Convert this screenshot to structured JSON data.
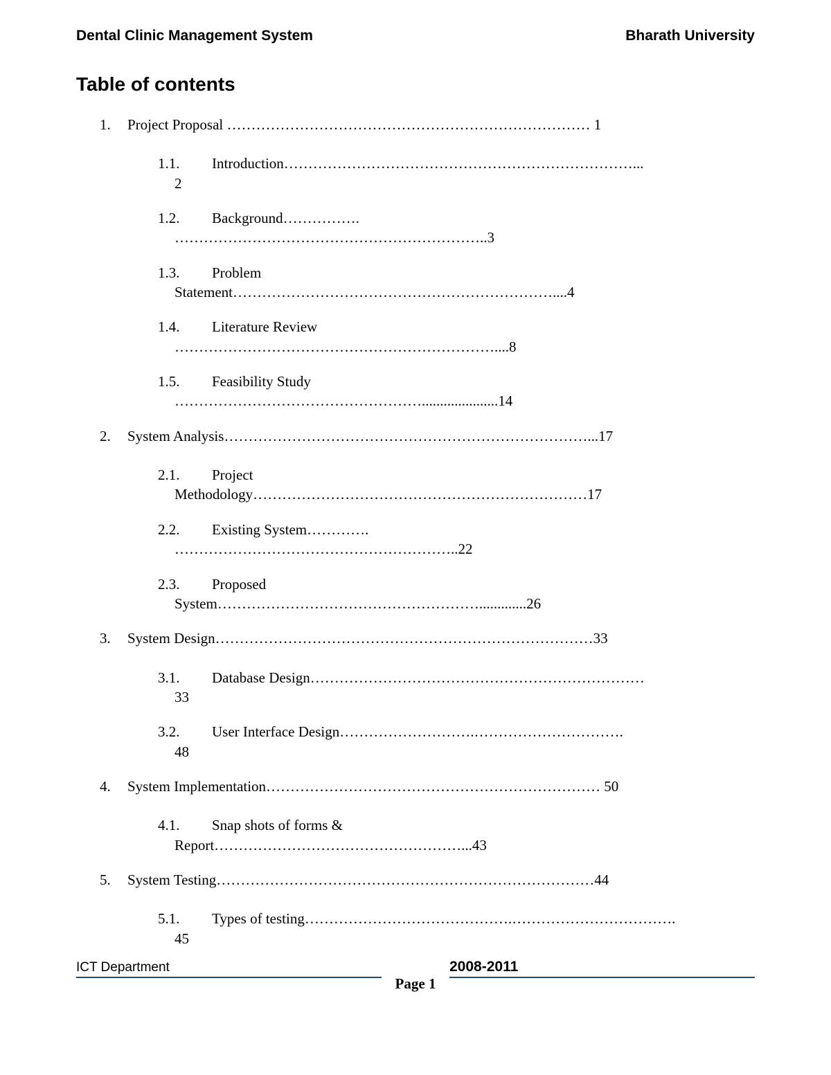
{
  "header": {
    "left": "Dental Clinic Management System",
    "right": "Bharath University"
  },
  "title": "Table of contents",
  "toc": [
    {
      "num": "1.",
      "line1": "Project Proposal ………………………………………………………………… 1",
      "subs": [
        {
          "num": "1.1.",
          "line1": "Introduction………………………………………………………………...",
          "line2": "2"
        },
        {
          "num": "1.2.",
          "line1": "Background…………….",
          "line2": "………………………………………………………..3"
        },
        {
          "num": "1.3.",
          "line1": "Problem",
          "cont": "Statement…………………………………………………………....4"
        },
        {
          "num": "1.4.",
          "line1": "Literature Review",
          "line2": "…………………………………………………………....8"
        },
        {
          "num": "1.5.",
          "line1": " Feasibility Study",
          "line2": "…………………………………………….....................14"
        }
      ]
    },
    {
      "num": "2.",
      "line1": "System Analysis…………………………………………………………………...17",
      "subs": [
        {
          "num": "2.1.",
          "line1": "Project",
          "cont": "Methodology……………………………………………………………17"
        },
        {
          "num": "2.2.",
          "line1": " Existing System………….",
          "line2": "…………………………………………………..22"
        },
        {
          "num": "2.3.",
          "line1": "Proposed",
          "cont": "System……………………………………………….............26"
        }
      ]
    },
    {
      "num": "3.",
      "line1": "System Design……………………………………………………………………33",
      "subs": [
        {
          "num": "3.1.",
          "line1": " Database Design……………………………………………………………",
          "line2": "33"
        },
        {
          "num": "3.2.",
          "line1": "User Interface Design……………………….………………………….",
          "line2": "48"
        }
      ]
    },
    {
      "num": "4.",
      "line1": "System Implementation……………………………………………………………  50",
      "subs": [
        {
          "num": "4.1.",
          "line1": "Snap shots of forms &",
          "cont": "Report……………………………………………...43"
        }
      ]
    },
    {
      "num": "5.",
      "line1": "System Testing……………………………………………………………………44",
      "subs": [
        {
          "num": "5.1.",
          "line1": "Types of testing…………………………………….…………………………….",
          "line2": "45"
        }
      ]
    }
  ],
  "footer": {
    "left": "ICT Department",
    "right": "2008-2011",
    "center": "Page 1"
  },
  "colors": {
    "text": "#000000",
    "rule": "#1f4e79",
    "background": "#ffffff"
  },
  "typography": {
    "header_font": "Arial",
    "header_size_pt": 16,
    "title_size_pt": 21,
    "body_font": "Times New Roman",
    "body_size_pt": 16
  }
}
